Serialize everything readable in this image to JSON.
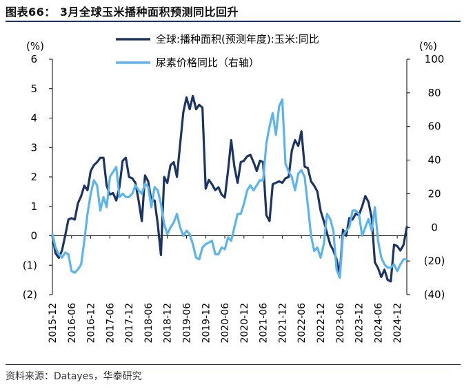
{
  "figure": {
    "title": "图表66： 3月全球玉米播种面积预测同比回升",
    "source": "资料来源：Datayes，华泰研究"
  },
  "colors": {
    "series1": "#1b3464",
    "series2": "#5bb4ee",
    "rule": "#1b3464"
  },
  "chart_data": {
    "type": "line",
    "y_left": {
      "unit_label": "(%)",
      "range": [
        -2,
        6
      ],
      "ticks": [
        "(2)",
        "(1)",
        "0",
        "1",
        "2",
        "3",
        "4",
        "5",
        "6"
      ]
    },
    "y_right": {
      "unit_label": "(%)",
      "range": [
        -40,
        100
      ],
      "ticks": [
        "(40)",
        "(20)",
        "0",
        "20",
        "40",
        "60",
        "80",
        "100"
      ]
    },
    "x_ticks": [
      "2015-12",
      "2016-06",
      "2016-12",
      "2017-06",
      "2017-12",
      "2018-06",
      "2018-12",
      "2019-06",
      "2019-12",
      "2020-06",
      "2020-12",
      "2021-06",
      "2021-12",
      "2022-06",
      "2022-12",
      "2023-06",
      "2023-12",
      "2024-06",
      "2024-12"
    ],
    "legend_placement": "top",
    "grid": false,
    "series": [
      {
        "name": "全球:播种面积(预测年度):玉米:同比",
        "axis": "left",
        "color": "#1b3464",
        "points": [
          [
            "2015-12",
            0.0
          ],
          [
            "2016-01",
            -0.6
          ],
          [
            "2016-02",
            -0.75
          ],
          [
            "2016-03",
            -0.5
          ],
          [
            "2016-04",
            0.0
          ],
          [
            "2016-05",
            0.55
          ],
          [
            "2016-06",
            0.6
          ],
          [
            "2016-07",
            0.55
          ],
          [
            "2016-08",
            1.1
          ],
          [
            "2016-09",
            1.35
          ],
          [
            "2016-10",
            1.7
          ],
          [
            "2016-11",
            1.55
          ],
          [
            "2016-12",
            2.2
          ],
          [
            "2017-01",
            2.4
          ],
          [
            "2017-02",
            2.5
          ],
          [
            "2017-03",
            2.65
          ],
          [
            "2017-04",
            2.65
          ],
          [
            "2017-05",
            1.7
          ],
          [
            "2017-06",
            1.4
          ],
          [
            "2017-07",
            1.45
          ],
          [
            "2017-08",
            1.2
          ],
          [
            "2017-09",
            1.65
          ],
          [
            "2017-10",
            2.55
          ],
          [
            "2017-11",
            2.65
          ],
          [
            "2017-12",
            2.0
          ],
          [
            "2018-01",
            1.95
          ],
          [
            "2018-02",
            1.8
          ],
          [
            "2018-03",
            1.2
          ],
          [
            "2018-04",
            0.5
          ],
          [
            "2018-05",
            2.05
          ],
          [
            "2018-06",
            1.85
          ],
          [
            "2018-07",
            1.2
          ],
          [
            "2018-08",
            1.2
          ],
          [
            "2018-09",
            0.4
          ],
          [
            "2018-10",
            -0.65
          ],
          [
            "2018-11",
            2.0
          ],
          [
            "2018-12",
            1.8
          ],
          [
            "2019-01",
            2.4
          ],
          [
            "2019-02",
            2.5
          ],
          [
            "2019-03",
            2.0
          ],
          [
            "2019-04",
            3.1
          ],
          [
            "2019-05",
            4.2
          ],
          [
            "2019-06",
            4.7
          ],
          [
            "2019-07",
            4.3
          ],
          [
            "2019-08",
            4.75
          ],
          [
            "2019-09",
            4.3
          ],
          [
            "2019-10",
            4.45
          ],
          [
            "2019-11",
            4.35
          ],
          [
            "2019-12",
            1.6
          ],
          [
            "2020-01",
            1.9
          ],
          [
            "2020-02",
            1.75
          ],
          [
            "2020-03",
            1.55
          ],
          [
            "2020-04",
            1.65
          ],
          [
            "2020-05",
            1.4
          ],
          [
            "2020-06",
            1.3
          ],
          [
            "2020-07",
            2.2
          ],
          [
            "2020-08",
            3.25
          ],
          [
            "2020-09",
            2.35
          ],
          [
            "2020-10",
            1.8
          ],
          [
            "2020-11",
            2.5
          ],
          [
            "2020-12",
            2.55
          ],
          [
            "2021-01",
            2.7
          ],
          [
            "2021-02",
            2.75
          ],
          [
            "2021-03",
            2.5
          ],
          [
            "2021-04",
            2.2
          ],
          [
            "2021-05",
            2.55
          ],
          [
            "2021-06",
            2.5
          ],
          [
            "2021-07",
            0.7
          ],
          [
            "2021-08",
            0.5
          ],
          [
            "2021-09",
            1.75
          ],
          [
            "2021-10",
            1.8
          ],
          [
            "2021-11",
            1.85
          ],
          [
            "2021-12",
            1.8
          ],
          [
            "2022-01",
            1.95
          ],
          [
            "2022-02",
            2.0
          ],
          [
            "2022-03",
            2.9
          ],
          [
            "2022-04",
            3.25
          ],
          [
            "2022-05",
            3.05
          ],
          [
            "2022-06",
            3.55
          ],
          [
            "2022-07",
            2.35
          ],
          [
            "2022-08",
            2.3
          ],
          [
            "2022-09",
            1.85
          ],
          [
            "2022-10",
            1.7
          ],
          [
            "2022-11",
            1.5
          ],
          [
            "2022-12",
            0.85
          ],
          [
            "2023-01",
            0.5
          ],
          [
            "2023-02",
            0.1
          ],
          [
            "2023-03",
            -0.3
          ],
          [
            "2023-04",
            -0.5
          ],
          [
            "2023-05",
            -0.8
          ],
          [
            "2023-06",
            -1.3
          ],
          [
            "2023-07",
            0.2
          ],
          [
            "2023-08",
            0.0
          ],
          [
            "2023-09",
            0.6
          ],
          [
            "2023-10",
            0.55
          ],
          [
            "2023-11",
            0.75
          ],
          [
            "2023-12",
            0.7
          ],
          [
            "2024-01",
            1.0
          ],
          [
            "2024-02",
            1.35
          ],
          [
            "2024-03",
            1.15
          ],
          [
            "2024-04",
            0.6
          ],
          [
            "2024-05",
            -0.9
          ],
          [
            "2024-06",
            -1.1
          ],
          [
            "2024-07",
            -1.4
          ],
          [
            "2024-08",
            -1.15
          ],
          [
            "2024-09",
            -1.5
          ],
          [
            "2024-10",
            -1.55
          ],
          [
            "2024-11",
            -0.3
          ],
          [
            "2024-12",
            -0.35
          ],
          [
            "2025-01",
            -0.5
          ],
          [
            "2025-02",
            -0.3
          ],
          [
            "2025-03",
            0.3
          ]
        ]
      },
      {
        "name": "尿素价格同比（右轴）",
        "axis": "right",
        "color": "#5bb4ee",
        "points": [
          [
            "2015-12",
            -4
          ],
          [
            "2016-01",
            -12
          ],
          [
            "2016-02",
            -16
          ],
          [
            "2016-03",
            -18
          ],
          [
            "2016-04",
            -15
          ],
          [
            "2016-05",
            -16
          ],
          [
            "2016-06",
            -26
          ],
          [
            "2016-07",
            -27
          ],
          [
            "2016-08",
            -25
          ],
          [
            "2016-09",
            -22
          ],
          [
            "2016-10",
            -8
          ],
          [
            "2016-11",
            8
          ],
          [
            "2016-12",
            20
          ],
          [
            "2017-01",
            28
          ],
          [
            "2017-02",
            25
          ],
          [
            "2017-03",
            10
          ],
          [
            "2017-04",
            18
          ],
          [
            "2017-05",
            12
          ],
          [
            "2017-06",
            30
          ],
          [
            "2017-07",
            33
          ],
          [
            "2017-08",
            36
          ],
          [
            "2017-09",
            18
          ],
          [
            "2017-10",
            20
          ],
          [
            "2017-11",
            18
          ],
          [
            "2017-12",
            18
          ],
          [
            "2018-01",
            20
          ],
          [
            "2018-02",
            25
          ],
          [
            "2018-03",
            22
          ],
          [
            "2018-04",
            20
          ],
          [
            "2018-05",
            26
          ],
          [
            "2018-06",
            24
          ],
          [
            "2018-07",
            12
          ],
          [
            "2018-08",
            24
          ],
          [
            "2018-09",
            22
          ],
          [
            "2018-10",
            14
          ],
          [
            "2018-11",
            2
          ],
          [
            "2018-12",
            -4
          ],
          [
            "2019-01",
            0
          ],
          [
            "2019-02",
            3
          ],
          [
            "2019-03",
            8
          ],
          [
            "2019-04",
            0
          ],
          [
            "2019-05",
            -5
          ],
          [
            "2019-06",
            -2
          ],
          [
            "2019-07",
            -4
          ],
          [
            "2019-08",
            -10
          ],
          [
            "2019-09",
            -18
          ],
          [
            "2019-10",
            -19
          ],
          [
            "2019-11",
            -12
          ],
          [
            "2019-12",
            -10
          ],
          [
            "2020-01",
            -9
          ],
          [
            "2020-02",
            -8
          ],
          [
            "2020-03",
            -16
          ],
          [
            "2020-04",
            -16
          ],
          [
            "2020-05",
            -12
          ],
          [
            "2020-06",
            -13
          ],
          [
            "2020-07",
            -6
          ],
          [
            "2020-08",
            -8
          ],
          [
            "2020-09",
            0
          ],
          [
            "2020-10",
            8
          ],
          [
            "2020-11",
            8
          ],
          [
            "2020-12",
            14
          ],
          [
            "2021-01",
            22
          ],
          [
            "2021-02",
            25
          ],
          [
            "2021-03",
            22
          ],
          [
            "2021-04",
            25
          ],
          [
            "2021-05",
            28
          ],
          [
            "2021-06",
            28
          ],
          [
            "2021-07",
            50
          ],
          [
            "2021-08",
            60
          ],
          [
            "2021-09",
            68
          ],
          [
            "2021-10",
            55
          ],
          [
            "2021-11",
            72
          ],
          [
            "2021-12",
            76
          ],
          [
            "2022-01",
            38
          ],
          [
            "2022-02",
            33
          ],
          [
            "2022-03",
            30
          ],
          [
            "2022-04",
            22
          ],
          [
            "2022-05",
            32
          ],
          [
            "2022-06",
            34
          ],
          [
            "2022-07",
            30
          ],
          [
            "2022-08",
            13
          ],
          [
            "2022-09",
            -5
          ],
          [
            "2022-10",
            -14
          ],
          [
            "2022-11",
            -12
          ],
          [
            "2022-12",
            -18
          ],
          [
            "2023-01",
            -10
          ],
          [
            "2023-02",
            8
          ],
          [
            "2023-03",
            5
          ],
          [
            "2023-04",
            -2
          ],
          [
            "2023-05",
            -25
          ],
          [
            "2023-06",
            -30
          ],
          [
            "2023-07",
            -5
          ],
          [
            "2023-08",
            -2
          ],
          [
            "2023-09",
            0
          ],
          [
            "2023-10",
            10
          ],
          [
            "2023-11",
            10
          ],
          [
            "2023-12",
            8
          ],
          [
            "2024-01",
            -5
          ],
          [
            "2024-02",
            0
          ],
          [
            "2024-03",
            5
          ],
          [
            "2024-04",
            -2
          ],
          [
            "2024-05",
            12
          ],
          [
            "2024-06",
            -8
          ],
          [
            "2024-07",
            -18
          ],
          [
            "2024-08",
            -22
          ],
          [
            "2024-09",
            -24
          ],
          [
            "2024-10",
            -24
          ],
          [
            "2024-11",
            -22
          ],
          [
            "2024-12",
            -26
          ],
          [
            "2025-01",
            -22
          ],
          [
            "2025-02",
            -19
          ],
          [
            "2025-03",
            -19
          ]
        ]
      }
    ]
  }
}
